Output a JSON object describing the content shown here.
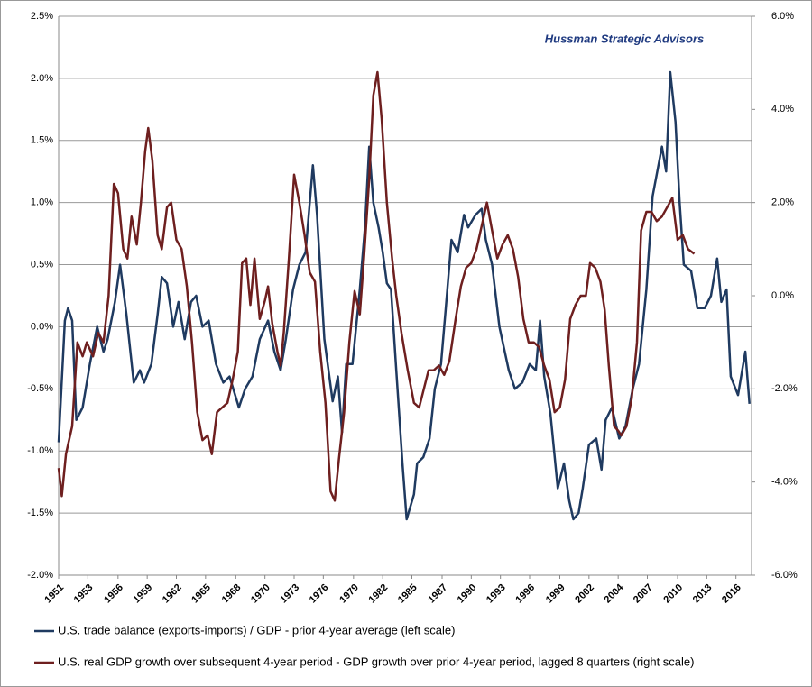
{
  "chart_data": {
    "type": "line",
    "annotation": "Hussman Strategic Advisors",
    "xlim": [
      1951,
      2017.5
    ],
    "xticks": [
      {
        "value": 1951,
        "label": "1951"
      },
      {
        "value": 1953.8,
        "label": "1953"
      },
      {
        "value": 1956.7,
        "label": "1956"
      },
      {
        "value": 1959.5,
        "label": "1959"
      },
      {
        "value": 1962.3,
        "label": "1962"
      },
      {
        "value": 1965.1,
        "label": "1965"
      },
      {
        "value": 1968,
        "label": "1968"
      },
      {
        "value": 1970.8,
        "label": "1970"
      },
      {
        "value": 1973.6,
        "label": "1973"
      },
      {
        "value": 1976.4,
        "label": "1976"
      },
      {
        "value": 1979.3,
        "label": "1979"
      },
      {
        "value": 1982.1,
        "label": "1982"
      },
      {
        "value": 1984.9,
        "label": "1985"
      },
      {
        "value": 1987.8,
        "label": "1987"
      },
      {
        "value": 1990.6,
        "label": "1990"
      },
      {
        "value": 1993.4,
        "label": "1993"
      },
      {
        "value": 1996.2,
        "label": "1996"
      },
      {
        "value": 1999.1,
        "label": "1999"
      },
      {
        "value": 2001.9,
        "label": "2002"
      },
      {
        "value": 2004.7,
        "label": "2004"
      },
      {
        "value": 2007.5,
        "label": "2007"
      },
      {
        "value": 2010.4,
        "label": "2010"
      },
      {
        "value": 2013.2,
        "label": "2013"
      },
      {
        "value": 2016,
        "label": "2016"
      }
    ],
    "ylim": [
      -2.0,
      2.5
    ],
    "yticks": [
      {
        "value": -2.0,
        "label": "-2.0%"
      },
      {
        "value": -1.5,
        "label": "-1.5%"
      },
      {
        "value": -1.0,
        "label": "-1.0%"
      },
      {
        "value": -0.5,
        "label": "-0.5%"
      },
      {
        "value": 0,
        "label": "0.0%"
      },
      {
        "value": 0.5,
        "label": "0.5%"
      },
      {
        "value": 1.0,
        "label": "1.0%"
      },
      {
        "value": 1.5,
        "label": "1.5%"
      },
      {
        "value": 2.0,
        "label": "2.0%"
      },
      {
        "value": 2.5,
        "label": "2.5%"
      }
    ],
    "y2lim": [
      -6.0,
      6.0
    ],
    "y2ticks": [
      {
        "value": -6.0,
        "label": "-6.0%"
      },
      {
        "value": -4.0,
        "label": "-4.0%"
      },
      {
        "value": -2.0,
        "label": "-2.0%"
      },
      {
        "value": 0,
        "label": "0.0%"
      },
      {
        "value": 2.0,
        "label": "2.0%"
      },
      {
        "value": 4.0,
        "label": "4.0%"
      },
      {
        "value": 6.0,
        "label": "6.0%"
      }
    ],
    "grid": true,
    "series": [
      {
        "name": "U.S. trade balance (exports-imports) / GDP - prior 4-year average (left scale)",
        "color": "#1f3a60",
        "x": [
          1951.0,
          1951.6,
          1951.9,
          1952.3,
          1952.7,
          1953.3,
          1954.0,
          1954.7,
          1955.3,
          1955.7,
          1956.4,
          1956.9,
          1957.5,
          1958.2,
          1958.8,
          1959.2,
          1959.9,
          1960.5,
          1960.9,
          1961.4,
          1962.0,
          1962.5,
          1963.1,
          1963.7,
          1964.2,
          1964.8,
          1965.4,
          1966.1,
          1966.8,
          1967.4,
          1968.3,
          1968.9,
          1969.6,
          1970.3,
          1971.1,
          1971.7,
          1972.3,
          1972.8,
          1973.5,
          1974.1,
          1974.7,
          1975.4,
          1975.8,
          1976.5,
          1977.3,
          1977.8,
          1978.2,
          1978.6,
          1979.2,
          1979.9,
          1980.4,
          1980.8,
          1981.2,
          1981.7,
          1982.1,
          1982.5,
          1982.9,
          1983.4,
          1984.0,
          1984.4,
          1985.1,
          1985.4,
          1986.0,
          1986.6,
          1987.1,
          1987.7,
          1988.1,
          1988.7,
          1989.3,
          1989.9,
          1990.3,
          1991.0,
          1991.6,
          1992.0,
          1992.6,
          1993.3,
          1994.2,
          1994.8,
          1995.5,
          1996.2,
          1996.8,
          1997.2,
          1997.6,
          1998.2,
          1998.9,
          1999.5,
          2000.0,
          2000.4,
          2000.9,
          2001.3,
          2001.9,
          2002.6,
          2003.1,
          2003.5,
          2004.1,
          2004.8,
          2005.4,
          2006.1,
          2006.7,
          2007.4,
          2008.0,
          2008.9,
          2009.3,
          2009.7,
          2010.2,
          2010.6,
          2011.0,
          2011.7,
          2012.3,
          2013.0,
          2013.6,
          2014.2,
          2014.6,
          2015.1,
          2015.5,
          2016.2,
          2016.9,
          2017.3
        ],
        "values": [
          -0.93,
          0.05,
          0.15,
          0.05,
          -0.75,
          -0.65,
          -0.3,
          0.0,
          -0.2,
          -0.1,
          0.2,
          0.5,
          0.1,
          -0.45,
          -0.35,
          -0.45,
          -0.3,
          0.1,
          0.4,
          0.35,
          0.0,
          0.2,
          -0.1,
          0.2,
          0.25,
          0.0,
          0.05,
          -0.3,
          -0.45,
          -0.4,
          -0.65,
          -0.5,
          -0.4,
          -0.1,
          0.05,
          -0.2,
          -0.35,
          -0.1,
          0.3,
          0.5,
          0.6,
          1.3,
          0.9,
          -0.1,
          -0.6,
          -0.4,
          -0.85,
          -0.3,
          -0.3,
          0.3,
          0.8,
          1.45,
          1.0,
          0.8,
          0.6,
          0.35,
          0.3,
          -0.35,
          -1.1,
          -1.55,
          -1.35,
          -1.1,
          -1.05,
          -0.9,
          -0.5,
          -0.3,
          0.1,
          0.7,
          0.6,
          0.9,
          0.8,
          0.9,
          0.95,
          0.7,
          0.5,
          0.0,
          -0.35,
          -0.5,
          -0.45,
          -0.3,
          -0.35,
          0.05,
          -0.4,
          -0.7,
          -1.3,
          -1.1,
          -1.4,
          -1.55,
          -1.5,
          -1.3,
          -0.95,
          -0.9,
          -1.15,
          -0.75,
          -0.65,
          -0.9,
          -0.8,
          -0.5,
          -0.3,
          0.3,
          1.05,
          1.45,
          1.25,
          2.05,
          1.65,
          1.0,
          0.5,
          0.45,
          0.15,
          0.15,
          0.25,
          0.55,
          0.2,
          0.3,
          -0.4,
          -0.55,
          -0.2,
          -0.62
        ]
      },
      {
        "name": "U.S. real GDP growth over subsequent 4-year period - GDP growth over prior 4-year period, lagged 8 quarters (right scale)",
        "color": "#6e1f1f",
        "axis": "y2",
        "x": [
          1951.0,
          1951.3,
          1951.7,
          1952.3,
          1952.8,
          1953.3,
          1953.7,
          1954.3,
          1954.8,
          1955.3,
          1955.8,
          1956.3,
          1956.7,
          1957.2,
          1957.6,
          1958.0,
          1958.5,
          1958.9,
          1959.3,
          1959.6,
          1960.0,
          1960.5,
          1960.9,
          1961.4,
          1961.8,
          1962.3,
          1962.8,
          1963.3,
          1963.8,
          1964.3,
          1964.8,
          1965.3,
          1965.7,
          1966.2,
          1966.7,
          1967.2,
          1967.7,
          1968.2,
          1968.6,
          1969.0,
          1969.4,
          1969.8,
          1970.3,
          1970.8,
          1971.1,
          1971.5,
          1972.0,
          1972.3,
          1972.6,
          1973.1,
          1973.6,
          1974.1,
          1974.6,
          1975.1,
          1975.6,
          1976.1,
          1976.6,
          1977.1,
          1977.5,
          1977.9,
          1978.4,
          1978.9,
          1979.4,
          1979.9,
          1980.3,
          1980.8,
          1981.2,
          1981.6,
          1982.0,
          1982.5,
          1983.0,
          1983.4,
          1983.9,
          1984.5,
          1985.1,
          1985.6,
          1986.5,
          1987.0,
          1987.5,
          1988.0,
          1988.5,
          1989.1,
          1989.6,
          1990.1,
          1990.6,
          1991.1,
          1991.6,
          1992.1,
          1992.6,
          1993.1,
          1993.6,
          1994.1,
          1994.6,
          1995.1,
          1995.6,
          1996.1,
          1996.6,
          1997.1,
          1997.6,
          1998.1,
          1998.6,
          1999.1,
          1999.6,
          2000.1,
          2000.6,
          2001.1,
          2001.6,
          2002.0,
          2002.5,
          2003.0,
          2003.4,
          2003.8,
          2004.3,
          2004.7,
          2005.0,
          2005.5,
          2006.0,
          2006.5,
          2006.9,
          2007.4,
          2007.9,
          2008.4,
          2008.9,
          2009.4,
          2009.9,
          2010.4,
          2010.9,
          2011.4,
          2012.0
        ],
        "values": [
          -3.7,
          -4.3,
          -3.4,
          -2.8,
          -1.0,
          -1.3,
          -1.0,
          -1.3,
          -0.8,
          -1.0,
          0.0,
          2.4,
          2.2,
          1.0,
          0.8,
          1.7,
          1.1,
          2.0,
          3.1,
          3.6,
          2.9,
          1.3,
          1.0,
          1.9,
          2.0,
          1.2,
          1.0,
          0.2,
          -1.0,
          -2.5,
          -3.1,
          -3.0,
          -3.4,
          -2.5,
          -2.4,
          -2.3,
          -1.8,
          -1.2,
          0.7,
          0.8,
          -0.2,
          0.8,
          -0.5,
          -0.1,
          0.2,
          -0.6,
          -1.2,
          -1.5,
          -0.8,
          0.8,
          2.6,
          2.0,
          1.3,
          0.5,
          0.3,
          -1.2,
          -2.3,
          -4.2,
          -4.4,
          -3.5,
          -2.5,
          -1.0,
          0.1,
          -0.4,
          0.8,
          2.5,
          4.3,
          4.8,
          3.8,
          2.0,
          0.8,
          0.0,
          -0.8,
          -1.6,
          -2.3,
          -2.4,
          -1.6,
          -1.6,
          -1.5,
          -1.7,
          -1.4,
          -0.5,
          0.2,
          0.6,
          0.7,
          1.0,
          1.5,
          2.0,
          1.4,
          0.8,
          1.1,
          1.3,
          1.0,
          0.4,
          -0.5,
          -1.0,
          -1.0,
          -1.1,
          -1.5,
          -1.8,
          -2.5,
          -2.4,
          -1.8,
          -0.5,
          -0.2,
          0.0,
          0.0,
          0.7,
          0.6,
          0.3,
          -0.3,
          -1.5,
          -2.8,
          -2.9,
          -3.0,
          -2.8,
          -2.2,
          -1.0,
          1.4,
          1.8,
          1.8,
          1.6,
          1.7,
          1.9,
          2.1,
          1.2,
          1.3,
          1.0,
          0.9
        ]
      }
    ]
  }
}
